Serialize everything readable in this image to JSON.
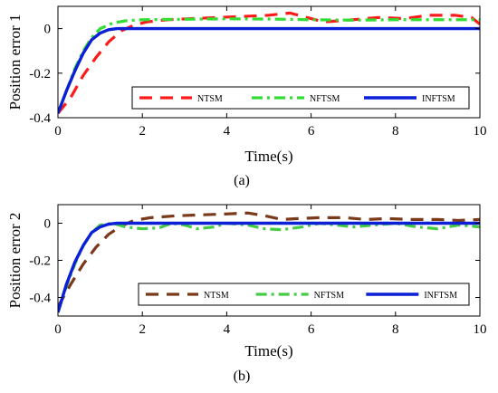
{
  "chart_data": [
    {
      "type": "line",
      "panel_label": "(a)",
      "xlabel": "Time(s)",
      "ylabel": "Position error 1",
      "xlim": [
        0,
        10
      ],
      "ylim": [
        -0.4,
        0.1
      ],
      "x_ticks": [
        0,
        2,
        4,
        6,
        8,
        10
      ],
      "y_ticks": [
        -0.4,
        -0.2,
        0
      ],
      "x_tick_labels": [
        "0",
        "2",
        "4",
        "6",
        "8",
        "10"
      ],
      "y_tick_labels": [
        "-0.4",
        "-0.2",
        "0"
      ],
      "legend_position": "lower-right",
      "series": [
        {
          "name": "NTSM",
          "color": "#ff1a1a",
          "dash": "dashed",
          "points": [
            [
              0,
              -0.38
            ],
            [
              0.3,
              -0.31
            ],
            [
              0.6,
              -0.21
            ],
            [
              0.9,
              -0.13
            ],
            [
              1.2,
              -0.06
            ],
            [
              1.5,
              -0.01
            ],
            [
              1.8,
              0.015
            ],
            [
              2.1,
              0.03
            ],
            [
              2.6,
              0.04
            ],
            [
              3.2,
              0.045
            ],
            [
              3.8,
              0.05
            ],
            [
              4.4,
              0.055
            ],
            [
              5.0,
              0.06
            ],
            [
              5.5,
              0.07
            ],
            [
              5.9,
              0.05
            ],
            [
              6.3,
              0.03
            ],
            [
              7.0,
              0.04
            ],
            [
              7.6,
              0.05
            ],
            [
              8.2,
              0.045
            ],
            [
              8.8,
              0.06
            ],
            [
              9.4,
              0.06
            ],
            [
              9.8,
              0.05
            ],
            [
              10,
              0.02
            ]
          ]
        },
        {
          "name": "NFTSM",
          "color": "#33dd33",
          "dash": "dashdot",
          "points": [
            [
              0,
              -0.38
            ],
            [
              0.2,
              -0.28
            ],
            [
              0.4,
              -0.18
            ],
            [
              0.6,
              -0.1
            ],
            [
              0.8,
              -0.04
            ],
            [
              1.0,
              0.0
            ],
            [
              1.3,
              0.025
            ],
            [
              1.6,
              0.035
            ],
            [
              2.0,
              0.04
            ],
            [
              3.0,
              0.042
            ],
            [
              4.0,
              0.044
            ],
            [
              5.0,
              0.043
            ],
            [
              6.0,
              0.04
            ],
            [
              7.0,
              0.038
            ],
            [
              8.0,
              0.04
            ],
            [
              9.0,
              0.04
            ],
            [
              10,
              0.04
            ]
          ]
        },
        {
          "name": "INFTSM",
          "color": "#0a1fd6",
          "dash": "solid",
          "points": [
            [
              0,
              -0.38
            ],
            [
              0.2,
              -0.28
            ],
            [
              0.4,
              -0.19
            ],
            [
              0.6,
              -0.11
            ],
            [
              0.8,
              -0.05
            ],
            [
              1.0,
              -0.02
            ],
            [
              1.2,
              -0.005
            ],
            [
              1.4,
              0.0
            ],
            [
              2.0,
              0.0
            ],
            [
              10,
              0.0
            ]
          ]
        }
      ]
    },
    {
      "type": "line",
      "panel_label": "(b)",
      "xlabel": "Time(s)",
      "ylabel": "Position error 2",
      "xlim": [
        0,
        10
      ],
      "ylim": [
        -0.5,
        0.1
      ],
      "x_ticks": [
        0,
        2,
        4,
        6,
        8,
        10
      ],
      "y_ticks": [
        -0.4,
        -0.2,
        0
      ],
      "x_tick_labels": [
        "0",
        "2",
        "4",
        "6",
        "8",
        "10"
      ],
      "y_tick_labels": [
        "-0.4",
        "-0.2",
        "0"
      ],
      "legend_position": "lower-right",
      "series": [
        {
          "name": "NTSM",
          "color": "#7a3a1a",
          "dash": "dashed",
          "points": [
            [
              0,
              -0.45
            ],
            [
              0.3,
              -0.33
            ],
            [
              0.6,
              -0.22
            ],
            [
              0.9,
              -0.13
            ],
            [
              1.2,
              -0.06
            ],
            [
              1.5,
              -0.015
            ],
            [
              1.8,
              0.015
            ],
            [
              2.2,
              0.03
            ],
            [
              2.8,
              0.04
            ],
            [
              3.4,
              0.045
            ],
            [
              4.0,
              0.05
            ],
            [
              4.5,
              0.055
            ],
            [
              4.9,
              0.04
            ],
            [
              5.3,
              0.02
            ],
            [
              5.7,
              0.025
            ],
            [
              6.2,
              0.03
            ],
            [
              6.8,
              0.03
            ],
            [
              7.3,
              0.02
            ],
            [
              7.8,
              0.025
            ],
            [
              8.4,
              0.02
            ],
            [
              9.0,
              0.02
            ],
            [
              9.5,
              0.015
            ],
            [
              10,
              0.02
            ]
          ]
        },
        {
          "name": "NFTSM",
          "color": "#44cc44",
          "dash": "dashdot",
          "points": [
            [
              0,
              -0.48
            ],
            [
              0.2,
              -0.34
            ],
            [
              0.4,
              -0.22
            ],
            [
              0.6,
              -0.12
            ],
            [
              0.8,
              -0.05
            ],
            [
              1.0,
              -0.01
            ],
            [
              1.3,
              0.0
            ],
            [
              1.6,
              -0.02
            ],
            [
              2.0,
              -0.03
            ],
            [
              2.4,
              -0.025
            ],
            [
              2.7,
              0.0
            ],
            [
              3.0,
              -0.01
            ],
            [
              3.3,
              -0.03
            ],
            [
              3.7,
              -0.02
            ],
            [
              4.0,
              0.0
            ],
            [
              4.5,
              -0.01
            ],
            [
              4.9,
              -0.03
            ],
            [
              5.3,
              -0.035
            ],
            [
              5.8,
              -0.02
            ],
            [
              6.2,
              0.0
            ],
            [
              6.6,
              -0.01
            ],
            [
              7.0,
              -0.02
            ],
            [
              7.5,
              -0.01
            ],
            [
              8.0,
              0.0
            ],
            [
              8.5,
              -0.02
            ],
            [
              9.0,
              -0.03
            ],
            [
              9.5,
              -0.01
            ],
            [
              10,
              -0.02
            ]
          ]
        },
        {
          "name": "INFTSM",
          "color": "#0a1fd6",
          "dash": "solid",
          "points": [
            [
              0,
              -0.48
            ],
            [
              0.2,
              -0.33
            ],
            [
              0.4,
              -0.21
            ],
            [
              0.6,
              -0.12
            ],
            [
              0.8,
              -0.05
            ],
            [
              1.0,
              -0.02
            ],
            [
              1.2,
              -0.005
            ],
            [
              1.4,
              0.0
            ],
            [
              2.0,
              0.0
            ],
            [
              10,
              0.0
            ]
          ]
        }
      ]
    }
  ]
}
